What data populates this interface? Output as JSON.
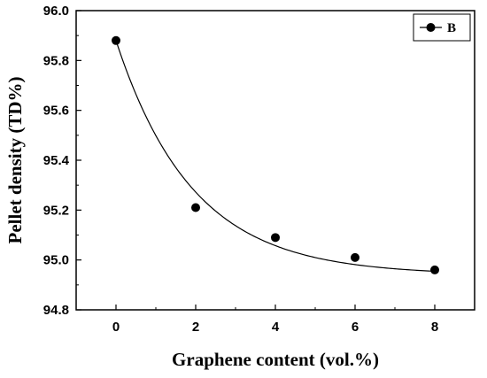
{
  "chart_data": {
    "type": "scatter",
    "title": "",
    "xlabel": "Graphene content (vol.%)",
    "ylabel": "Pellet density (TD%)",
    "xlim": [
      -1,
      9
    ],
    "ylim": [
      94.8,
      96.0
    ],
    "xticks": [
      "0",
      "2",
      "4",
      "6",
      "8"
    ],
    "yticks": [
      "94.8",
      "95.0",
      "95.2",
      "95.4",
      "95.6",
      "95.8",
      "96.0"
    ],
    "grid": false,
    "legend_position": "top-right",
    "series": [
      {
        "name": "B",
        "x": [
          0,
          2,
          4,
          6,
          8
        ],
        "y": [
          95.88,
          95.21,
          95.09,
          95.01,
          94.96
        ],
        "marker": "filled-circle",
        "color": "#000000",
        "fit_curve": "exponential decay"
      }
    ]
  }
}
